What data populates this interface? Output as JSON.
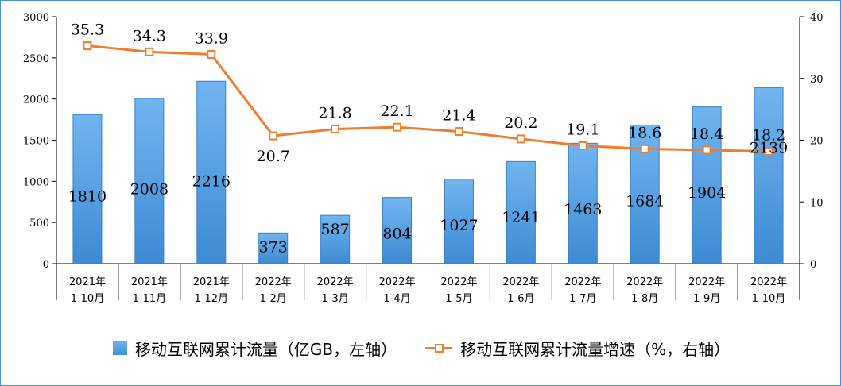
{
  "chart_data": {
    "type": "bar+line",
    "categories": [
      [
        "2021年",
        "1-10月"
      ],
      [
        "2021年",
        "1-11月"
      ],
      [
        "2021年",
        "1-12月"
      ],
      [
        "2022年",
        "1-2月"
      ],
      [
        "2022年",
        "1-3月"
      ],
      [
        "2022年",
        "1-4月"
      ],
      [
        "2022年",
        "1-5月"
      ],
      [
        "2022年",
        "1-6月"
      ],
      [
        "2022年",
        "1-7月"
      ],
      [
        "2022年",
        "1-8月"
      ],
      [
        "2022年",
        "1-9月"
      ],
      [
        "2022年",
        "1-10月"
      ]
    ],
    "series": [
      {
        "name": "移动互联网累计流量（亿GB，左轴）",
        "type": "bar",
        "axis": "left",
        "color": "#4f9be3",
        "values": [
          1810,
          2008,
          2216,
          373,
          587,
          804,
          1027,
          1241,
          1463,
          1684,
          1904,
          2139
        ]
      },
      {
        "name": "移动互联网累计流量增速（%，右轴）",
        "type": "line",
        "axis": "right",
        "color": "#f07c2c",
        "values": [
          35.3,
          34.3,
          33.9,
          20.7,
          21.8,
          22.1,
          21.4,
          20.2,
          19.1,
          18.6,
          18.4,
          18.2
        ]
      }
    ],
    "y_left": {
      "min": 0,
      "max": 3000,
      "ticks": [
        0,
        500,
        1000,
        1500,
        2000,
        2500,
        3000
      ]
    },
    "y_right": {
      "min": 0,
      "max": 40,
      "ticks": [
        0,
        10,
        20,
        30,
        40
      ]
    },
    "legend_position": "bottom",
    "grid": false
  }
}
